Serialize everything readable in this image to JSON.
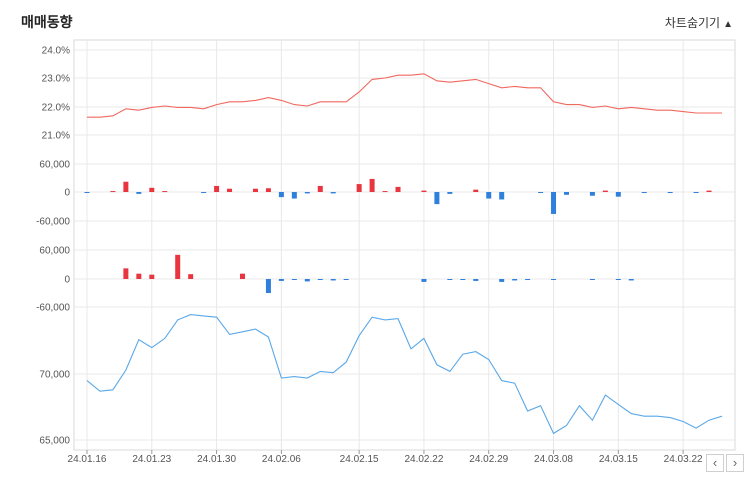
{
  "section_title": "매매동향",
  "toggle_label": "차트숨기기",
  "toggle_icon": "triangle-up-icon",
  "nav": {
    "prev_icon": "chevron-left-icon",
    "next_icon": "chevron-right-icon"
  },
  "colors": {
    "positive": "#e8353f",
    "negative": "#2f7fdc",
    "line_top": "#f0685e",
    "line_price": "#5aa8e8",
    "grid": "#e8e8e8"
  },
  "chart_data": [
    {
      "type": "line",
      "ylim": [
        20.5,
        24.0
      ],
      "yticks": [
        "24.0%",
        "23.0%",
        "22.0%",
        "21.0%"
      ],
      "ytick_values": [
        24.0,
        23.0,
        22.0,
        21.0
      ],
      "x_ticks": [
        "24.01.16",
        "24.01.23",
        "24.01.30",
        "24.02.06",
        "24.02.15",
        "24.02.22",
        "24.02.29",
        "24.03.08",
        "24.03.15",
        "24.03.22"
      ],
      "series": [
        {
          "values": [
            21.6,
            21.6,
            21.65,
            21.9,
            21.85,
            21.95,
            22.0,
            21.95,
            21.95,
            21.9,
            22.05,
            22.15,
            22.15,
            22.2,
            22.3,
            22.2,
            22.05,
            22.0,
            22.15,
            22.15,
            22.15,
            22.5,
            22.95,
            23.0,
            23.1,
            23.1,
            23.15,
            22.9,
            22.85,
            22.9,
            22.95,
            22.8,
            22.65,
            22.7,
            22.65,
            22.65,
            22.15,
            22.05,
            22.05,
            21.95,
            22.0,
            21.9,
            21.95,
            21.9,
            21.85,
            21.85,
            21.8,
            21.75,
            21.75,
            21.75
          ]
        }
      ]
    },
    {
      "type": "bar",
      "ylim": [
        -80000,
        80000
      ],
      "yticks": [
        "60,000",
        "0",
        "-60,000"
      ],
      "ytick_values": [
        60000,
        0,
        -60000
      ],
      "values": [
        -1000,
        0,
        2000,
        22000,
        -4000,
        9000,
        2000,
        0,
        0,
        -2000,
        13000,
        7000,
        0,
        7000,
        8000,
        -11000,
        -14000,
        -3000,
        13000,
        -3000,
        0,
        17000,
        28000,
        2000,
        11000,
        0,
        3000,
        -26000,
        -4000,
        0,
        5000,
        -14000,
        -16000,
        0,
        0,
        -2000,
        -47000,
        -6000,
        0,
        -8000,
        3000,
        -10000,
        0,
        -1000,
        0,
        -1000,
        0,
        -2000,
        3000,
        0
      ]
    },
    {
      "type": "bar",
      "ylim": [
        -60000,
        80000
      ],
      "yticks": [
        "60,000",
        "0",
        "-60,000"
      ],
      "ytick_values": [
        60000,
        0,
        -60000
      ],
      "values": [
        0,
        0,
        0,
        22000,
        11000,
        9000,
        0,
        50000,
        10000,
        0,
        0,
        0,
        11000,
        0,
        -29000,
        -4000,
        -2000,
        -5000,
        -2000,
        -3000,
        -2000,
        0,
        0,
        0,
        0,
        0,
        -6000,
        0,
        -1000,
        -1000,
        -4000,
        0,
        -6000,
        -3000,
        -2000,
        0,
        -1000,
        0,
        0,
        -1000,
        0,
        -1000,
        -3000,
        0,
        0,
        0,
        0,
        0,
        0,
        0
      ]
    },
    {
      "type": "line",
      "ylim": [
        65000,
        75200
      ],
      "yticks": [
        "70,000",
        "65,000"
      ],
      "ytick_values": [
        70000,
        65000
      ],
      "series": [
        {
          "values": [
            69500,
            68700,
            68800,
            70300,
            72600,
            72000,
            72700,
            74100,
            74500,
            74400,
            74300,
            73000,
            73200,
            73400,
            72800,
            69700,
            69800,
            69700,
            70200,
            70100,
            70900,
            72900,
            74300,
            74100,
            74200,
            71900,
            72700,
            70700,
            70200,
            71500,
            71700,
            71100,
            69500,
            69300,
            67200,
            67600,
            65500,
            66100,
            67600,
            66500,
            68400,
            67700,
            67000,
            66800,
            66800,
            66700,
            66400,
            65900,
            66500,
            66800
          ]
        }
      ]
    }
  ]
}
